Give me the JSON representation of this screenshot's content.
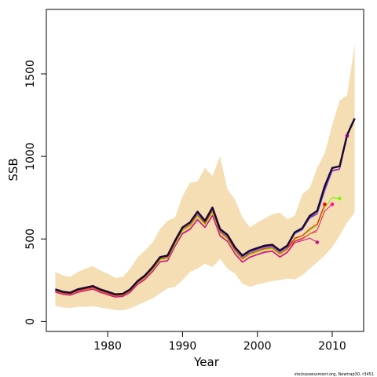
{
  "chart_data": {
    "type": "line",
    "xlabel": "Year",
    "ylabel": "SSB",
    "xlim": [
      1971.8,
      2014.2
    ],
    "ylim": [
      -60,
      1890
    ],
    "x_ticks": [
      1980,
      1990,
      2000,
      2010
    ],
    "y_ticks": [
      0,
      500,
      1000,
      1500
    ],
    "grid": false,
    "legend": "none",
    "credit": "stockassessment.org, Newtrap30, r3451",
    "band": {
      "color": "#f5deb3",
      "x": [
        1973,
        1974,
        1975,
        1976,
        1977,
        1978,
        1979,
        1980,
        1981,
        1982,
        1983,
        1984,
        1985,
        1986,
        1987,
        1988,
        1989,
        1990,
        1991,
        1992,
        1993,
        1994,
        1995,
        1996,
        1997,
        1998,
        1999,
        2000,
        2001,
        2002,
        2003,
        2004,
        2005,
        2006,
        2007,
        2008,
        2009,
        2010,
        2011,
        2012,
        2013
      ],
      "lower": [
        95,
        85,
        82,
        88,
        90,
        92,
        85,
        78,
        70,
        68,
        80,
        100,
        120,
        140,
        170,
        200,
        210,
        250,
        300,
        320,
        350,
        330,
        380,
        320,
        290,
        230,
        210,
        225,
        235,
        245,
        250,
        260,
        255,
        280,
        320,
        360,
        400,
        450,
        520,
        600,
        660
      ],
      "upper": [
        300,
        280,
        270,
        300,
        320,
        335,
        310,
        290,
        265,
        270,
        320,
        390,
        430,
        480,
        560,
        610,
        630,
        760,
        840,
        850,
        930,
        880,
        1000,
        800,
        740,
        630,
        570,
        600,
        625,
        650,
        660,
        620,
        640,
        770,
        810,
        930,
        1020,
        1190,
        1340,
        1370,
        1680
      ]
    },
    "series": [
      {
        "color": "#1a0a33",
        "x": [
          1973,
          1974,
          1975,
          1976,
          1977,
          1978,
          1979,
          1980,
          1981,
          1982,
          1983,
          1984,
          1985,
          1986,
          1987,
          1988,
          1989,
          1990,
          1991,
          1992,
          1993,
          1994,
          1995,
          1996,
          1997,
          1998,
          1999,
          2000,
          2001,
          2002,
          2003,
          2004,
          2005,
          2006,
          2007,
          2008,
          2009,
          2010,
          2011,
          2012,
          2013
        ],
        "values": [
          195,
          180,
          175,
          195,
          205,
          215,
          195,
          180,
          165,
          168,
          195,
          245,
          280,
          330,
          390,
          400,
          490,
          570,
          600,
          665,
          610,
          690,
          560,
          525,
          450,
          400,
          430,
          445,
          460,
          465,
          430,
          460,
          540,
          565,
          640,
          670,
          820,
          930,
          940,
          1130,
          1230
        ]
      },
      {
        "color": "#8b008b",
        "x": [
          1973,
          1974,
          1975,
          1976,
          1977,
          1978,
          1979,
          1980,
          1981,
          1982,
          1983,
          1984,
          1985,
          1986,
          1987,
          1988,
          1989,
          1990,
          1991,
          1992,
          1993,
          1994,
          1995,
          1996,
          1997,
          1998,
          1999,
          2000,
          2001,
          2002,
          2003,
          2004,
          2005,
          2006,
          2007,
          2008,
          2009,
          2010,
          2011,
          2012
        ],
        "values": [
          192,
          177,
          172,
          192,
          202,
          212,
          192,
          177,
          162,
          165,
          192,
          242,
          277,
          327,
          387,
          397,
          487,
          567,
          597,
          660,
          605,
          685,
          555,
          520,
          445,
          395,
          425,
          440,
          455,
          460,
          425,
          455,
          535,
          560,
          630,
          655,
          800,
          915,
          925,
          1125
        ],
        "end_marker": true
      },
      {
        "color": "#7b68ee",
        "x": [
          1973,
          1974,
          1975,
          1976,
          1977,
          1978,
          1979,
          1980,
          1981,
          1982,
          1983,
          1984,
          1985,
          1986,
          1987,
          1988,
          1989,
          1990,
          1991,
          1992,
          1993,
          1994,
          1995,
          1996,
          1997,
          1998,
          1999,
          2000,
          2001,
          2002,
          2003,
          2004,
          2005,
          2006,
          2007,
          2008,
          2009,
          2010,
          2011
        ],
        "values": [
          190,
          175,
          170,
          190,
          200,
          210,
          190,
          175,
          160,
          163,
          190,
          240,
          275,
          325,
          385,
          395,
          485,
          565,
          595,
          655,
          600,
          680,
          550,
          515,
          440,
          390,
          420,
          435,
          450,
          455,
          420,
          450,
          530,
          555,
          625,
          650,
          790,
          910,
          920
        ],
        "end_marker": false
      },
      {
        "color": "#7cfc00",
        "x": [
          1973,
          1974,
          1975,
          1976,
          1977,
          1978,
          1979,
          1980,
          1981,
          1982,
          1983,
          1984,
          1985,
          1986,
          1987,
          1988,
          1989,
          1990,
          1991,
          1992,
          1993,
          1994,
          1995,
          1996,
          1997,
          1998,
          1999,
          2000,
          2001,
          2002,
          2003,
          2004,
          2005,
          2006,
          2007,
          2008,
          2009,
          2010,
          2011
        ],
        "values": [
          183,
          170,
          165,
          183,
          193,
          203,
          183,
          168,
          155,
          158,
          183,
          232,
          265,
          313,
          372,
          380,
          468,
          548,
          575,
          635,
          585,
          660,
          535,
          500,
          425,
          375,
          405,
          420,
          435,
          440,
          405,
          435,
          500,
          520,
          550,
          580,
          690,
          750,
          745
        ],
        "end_marker": true
      },
      {
        "color": "#ff1493",
        "x": [
          1973,
          1974,
          1975,
          1976,
          1977,
          1978,
          1979,
          1980,
          1981,
          1982,
          1983,
          1984,
          1985,
          1986,
          1987,
          1988,
          1989,
          1990,
          1991,
          1992,
          1993,
          1994,
          1995,
          1996,
          1997,
          1998,
          1999,
          2000,
          2001,
          2002,
          2003,
          2004,
          2005,
          2006,
          2007,
          2008,
          2009,
          2010
        ],
        "values": [
          180,
          166,
          161,
          178,
          188,
          198,
          178,
          163,
          150,
          153,
          178,
          226,
          258,
          305,
          363,
          370,
          458,
          535,
          562,
          620,
          572,
          645,
          522,
          488,
          413,
          362,
          392,
          408,
          423,
          428,
          393,
          422,
          485,
          500,
          530,
          555,
          670,
          710
        ],
        "end_marker": true
      },
      {
        "color": "#ff0000",
        "x": [
          1973,
          1974,
          1975,
          1976,
          1977,
          1978,
          1979,
          1980,
          1981,
          1982,
          1983,
          1984,
          1985,
          1986,
          1987,
          1988,
          1989,
          1990,
          1991,
          1992,
          1993,
          1994,
          1995,
          1996,
          1997,
          1998,
          1999,
          2000,
          2001,
          2002,
          2003,
          2004,
          2005,
          2006,
          2007,
          2008,
          2009
        ],
        "values": [
          186,
          172,
          167,
          186,
          196,
          206,
          186,
          171,
          157,
          160,
          186,
          236,
          270,
          320,
          380,
          388,
          478,
          558,
          585,
          645,
          595,
          670,
          543,
          508,
          432,
          382,
          413,
          428,
          443,
          448,
          412,
          442,
          505,
          520,
          560,
          590,
          710
        ],
        "end_marker": true
      },
      {
        "color": "#c71585",
        "x": [
          1973,
          1974,
          1975,
          1976,
          1977,
          1978,
          1979,
          1980,
          1981,
          1982,
          1983,
          1984,
          1985,
          1986,
          1987,
          1988,
          1989,
          1990,
          1991,
          1992,
          1993,
          1994,
          1995,
          1996,
          1997,
          1998,
          1999,
          2000,
          2001,
          2002,
          2003,
          2004,
          2005,
          2006,
          2007,
          2008
        ],
        "values": [
          178,
          164,
          159,
          176,
          186,
          196,
          176,
          161,
          148,
          151,
          176,
          224,
          255,
          302,
          360,
          367,
          455,
          530,
          557,
          615,
          568,
          640,
          518,
          484,
          409,
          358,
          388,
          404,
          419,
          424,
          389,
          418,
          478,
          490,
          505,
          480
        ],
        "end_marker": true
      },
      {
        "color": "#d2691e",
        "x": [
          1973,
          1974,
          1975,
          1976,
          1977,
          1978,
          1979,
          1980,
          1981,
          1982,
          1983,
          1984,
          1985,
          1986,
          1987,
          1988,
          1989,
          1990,
          1991,
          1992,
          1993,
          1994,
          1995,
          1996,
          1997,
          1998,
          1999,
          2000,
          2001,
          2002,
          2003,
          2004,
          2005,
          2006,
          2007,
          2008
        ],
        "values": [
          184,
          170,
          165,
          184,
          194,
          204,
          184,
          169,
          155,
          158,
          184,
          234,
          268,
          318,
          378,
          386,
          476,
          556,
          583,
          643,
          593,
          668,
          541,
          506,
          430,
          380,
          411,
          426,
          441,
          446,
          410,
          440,
          490,
          505,
          530,
          545
        ],
        "end_marker": false
      }
    ]
  }
}
